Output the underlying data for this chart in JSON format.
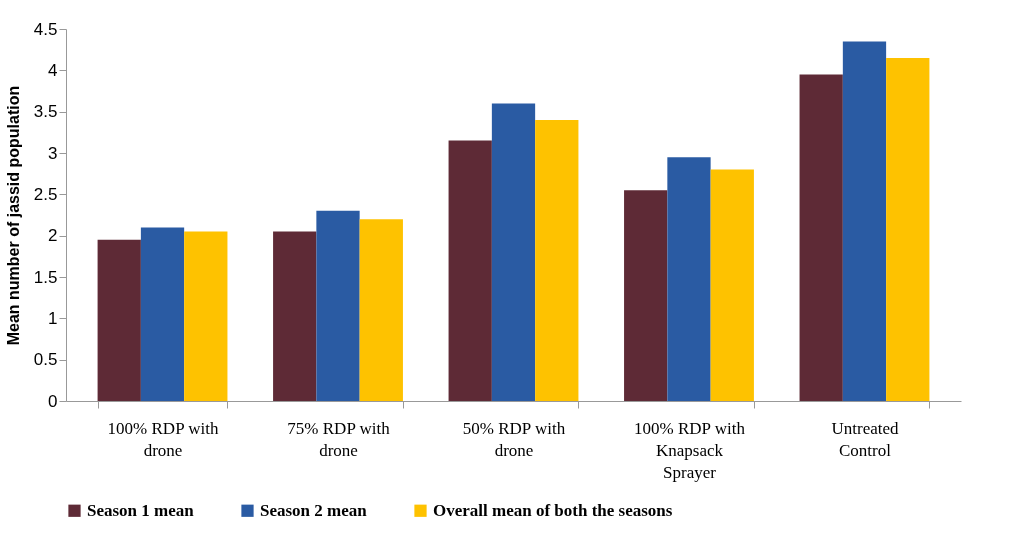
{
  "chart_data": {
    "type": "bar",
    "ylabel": "Mean number of jassid population",
    "categories": [
      "100% RDP with drone",
      "75% RDP with drone",
      "50% RDP with drone",
      "100% RDP with Knapsack Sprayer",
      "Untreated Control"
    ],
    "series": [
      {
        "name": "Season 1 mean",
        "color": "#5e2a36",
        "values": [
          1.95,
          2.05,
          3.15,
          2.55,
          3.95
        ]
      },
      {
        "name": "Season 2 mean",
        "color": "#2a5ba3",
        "values": [
          2.1,
          2.3,
          3.6,
          2.95,
          4.35
        ]
      },
      {
        "name": "Overall mean of both the seasons",
        "color": "#fec200",
        "values": [
          2.05,
          2.2,
          3.4,
          2.8,
          4.15
        ]
      }
    ],
    "ylim": [
      0,
      4.5
    ],
    "yticks": [
      0,
      0.5,
      1,
      1.5,
      2,
      2.5,
      3,
      3.5,
      4,
      4.5
    ],
    "grid": false,
    "legend": "bottom"
  }
}
